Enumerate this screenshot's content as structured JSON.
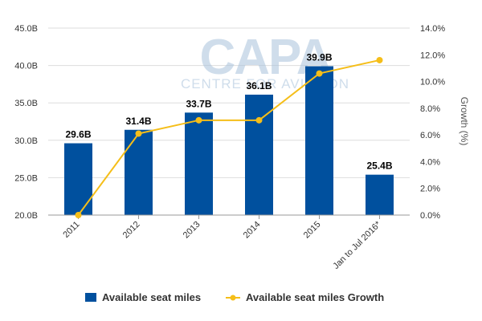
{
  "watermark": {
    "main": "CAPA",
    "sub": "CENTRE FOR AVIATION"
  },
  "colors": {
    "bar": "#00509E",
    "line": "#F5BE19",
    "grid": "#DDDDDD",
    "axis": "#999999"
  },
  "chart_data": {
    "type": "bar",
    "categories": [
      "2011",
      "2012",
      "2013",
      "2014",
      "2015",
      "Jan to Jul 2016*"
    ],
    "series": [
      {
        "name": "Available seat miles",
        "type": "bar",
        "axis": "left",
        "values": [
          29.6,
          31.4,
          33.7,
          36.1,
          39.9,
          25.4
        ],
        "labels": [
          "29.6B",
          "31.4B",
          "33.7B",
          "36.1B",
          "39.9B",
          "25.4B"
        ]
      },
      {
        "name": "Available seat miles Growth",
        "type": "line",
        "axis": "right",
        "values": [
          0.0,
          6.1,
          7.1,
          7.1,
          10.6,
          11.6
        ]
      }
    ],
    "left_axis": {
      "min": 20,
      "max": 45,
      "ticks": [
        "20.0B",
        "25.0B",
        "30.0B",
        "35.0B",
        "40.0B",
        "45.0B"
      ],
      "tick_values": [
        20,
        25,
        30,
        35,
        40,
        45
      ]
    },
    "right_axis": {
      "min": 0,
      "max": 14,
      "label": "Growth (%)",
      "ticks": [
        "0.0%",
        "2.0%",
        "4.0%",
        "6.0%",
        "8.0%",
        "10.0%",
        "12.0%",
        "14.0%"
      ],
      "tick_values": [
        0,
        2,
        4,
        6,
        8,
        10,
        12,
        14
      ]
    },
    "grid": true,
    "legend_position": "bottom"
  }
}
